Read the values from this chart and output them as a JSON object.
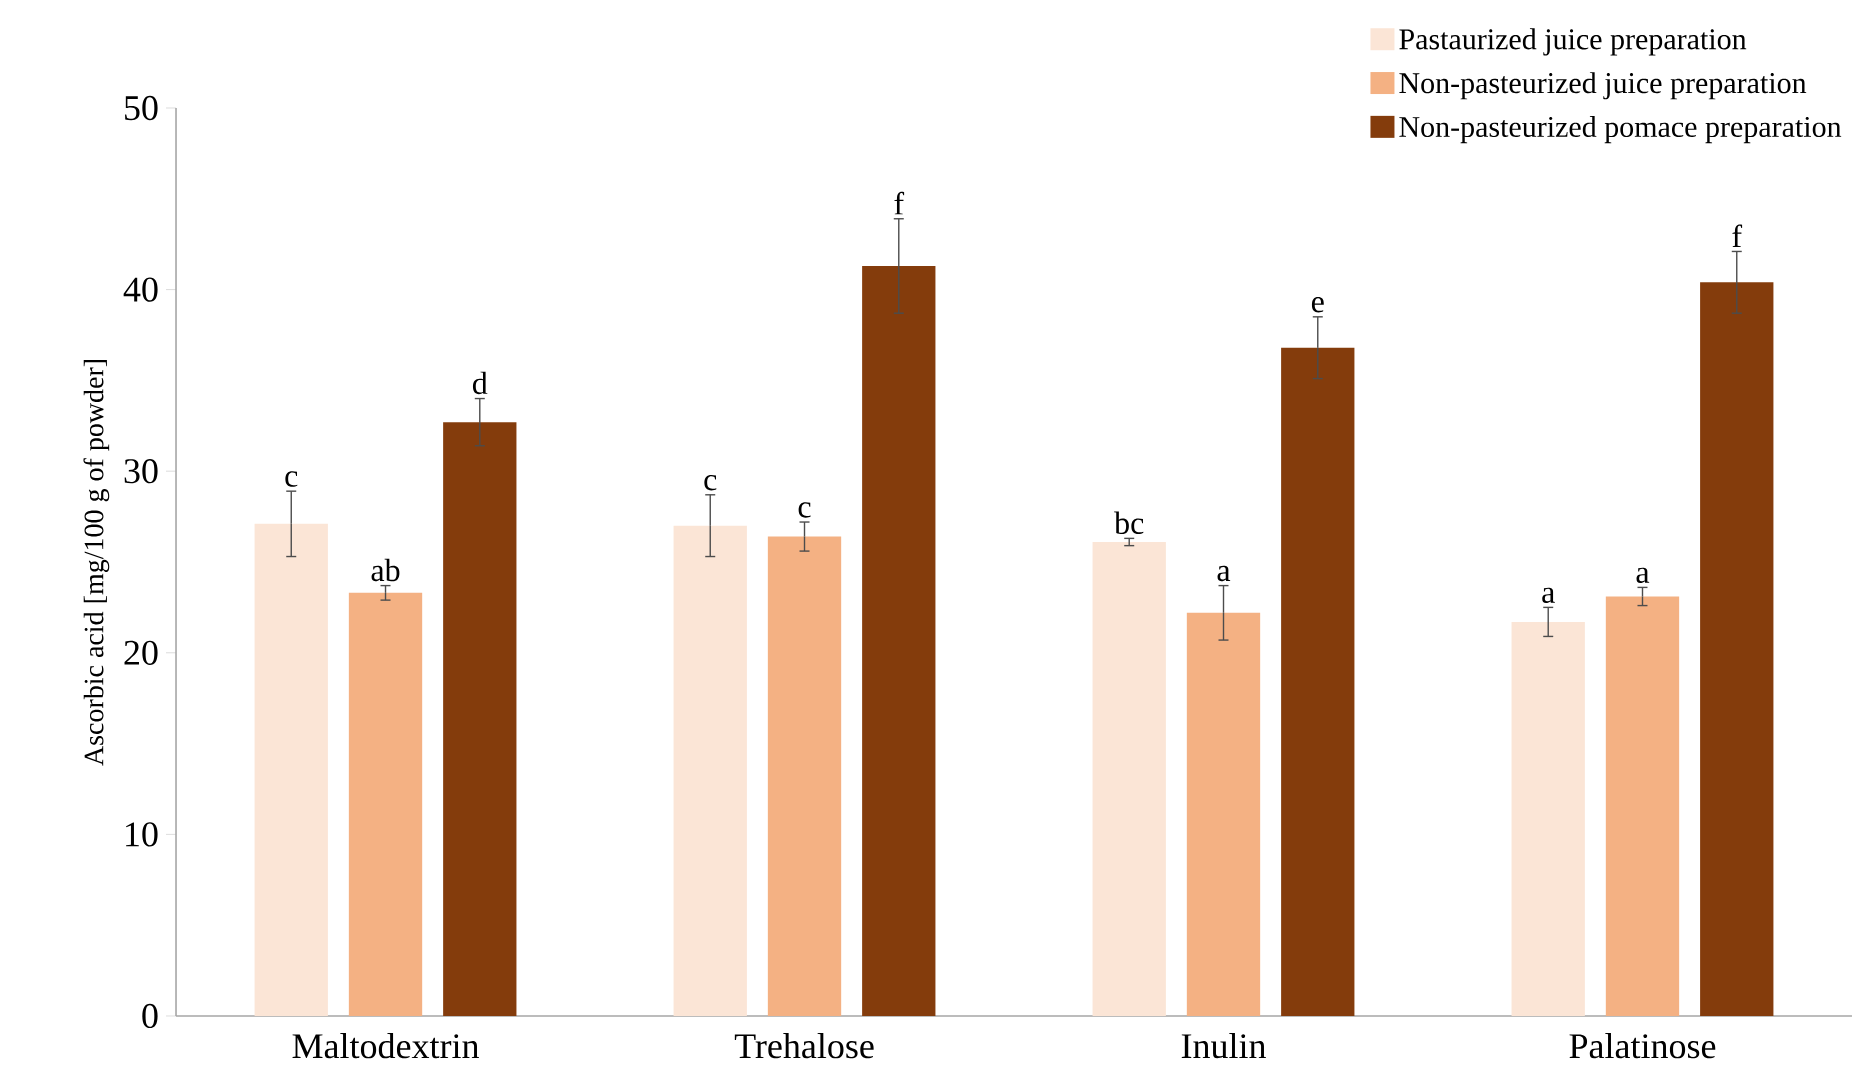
{
  "chart_data": {
    "type": "bar",
    "ylabel": "Ascorbic acid [mg/100 g of powder]",
    "categories": [
      "Maltodextrin",
      "Trehalose",
      "Inulin",
      "Palatinose"
    ],
    "series": [
      {
        "name": "Pastaurized juice preparation",
        "color": "#fbe5d6",
        "values": [
          27.1,
          27.0,
          26.1,
          21.7
        ],
        "errors": [
          1.8,
          1.7,
          0.2,
          0.8
        ],
        "value_labels": [
          "c",
          "c",
          "bc",
          "a"
        ]
      },
      {
        "name": "Non-pasteurized juice preparation",
        "color": "#f4b183",
        "values": [
          23.3,
          26.4,
          22.2,
          23.1
        ],
        "errors": [
          0.4,
          0.8,
          1.5,
          0.5
        ],
        "value_labels": [
          "ab",
          "c",
          "a",
          "a"
        ]
      },
      {
        "name": "Non-pasteurized pomace preparation",
        "color": "#843c0c",
        "values": [
          32.7,
          41.3,
          36.8,
          40.4
        ],
        "errors": [
          1.3,
          2.6,
          1.7,
          1.7
        ],
        "value_labels": [
          "d",
          "f",
          "e",
          "f"
        ]
      }
    ],
    "ylim": [
      0,
      50
    ],
    "yticks": [
      0,
      10,
      20,
      30,
      40,
      50
    ],
    "grid": false,
    "legend": "top right"
  }
}
